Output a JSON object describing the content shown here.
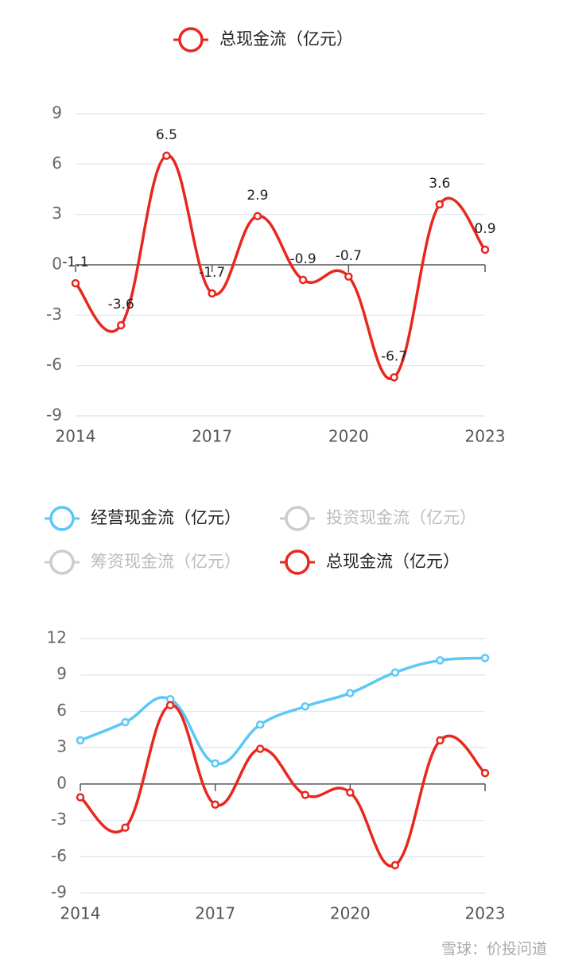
{
  "chart_data": [
    {
      "type": "line",
      "x": [
        2014,
        2015,
        2016,
        2017,
        2018,
        2019,
        2020,
        2021,
        2022,
        2023
      ],
      "xlim": [
        2014,
        2023
      ],
      "xticks": [
        2014,
        2017,
        2020,
        2023
      ],
      "ylim": [
        -9,
        9
      ],
      "yticks": [
        -9,
        -6,
        -3,
        0,
        3,
        6,
        9
      ],
      "grid": true,
      "data_labels": true,
      "series": [
        {
          "name": "总现金流（亿元）",
          "color": "#e8281e",
          "visible": true,
          "values": [
            -1.1,
            -3.6,
            6.5,
            -1.7,
            2.9,
            -0.9,
            -0.7,
            -6.7,
            3.6,
            0.9
          ]
        }
      ]
    },
    {
      "type": "line",
      "x": [
        2014,
        2015,
        2016,
        2017,
        2018,
        2019,
        2020,
        2021,
        2022,
        2023
      ],
      "xlim": [
        2014,
        2023
      ],
      "xticks": [
        2014,
        2017,
        2020,
        2023
      ],
      "ylim": [
        -9,
        12
      ],
      "yticks": [
        -9,
        -6,
        -3,
        0,
        3,
        6,
        9,
        12
      ],
      "grid": true,
      "data_labels": false,
      "series": [
        {
          "name": "经营现金流（亿元）",
          "color": "#5bc8f5",
          "visible": true,
          "values": [
            3.6,
            5.1,
            7.0,
            1.7,
            4.9,
            6.4,
            7.5,
            9.2,
            10.2,
            10.4
          ]
        },
        {
          "name": "投资现金流（亿元）",
          "color": "#cccccc",
          "visible": false
        },
        {
          "name": "筹资现金流（亿元）",
          "color": "#cccccc",
          "visible": false
        },
        {
          "name": "总现金流（亿元）",
          "color": "#e8281e",
          "visible": true,
          "values": [
            -1.1,
            -3.6,
            6.5,
            -1.7,
            2.9,
            -0.9,
            -0.7,
            -6.7,
            3.6,
            0.9
          ]
        }
      ]
    }
  ],
  "watermark": "雪球：价投问道"
}
